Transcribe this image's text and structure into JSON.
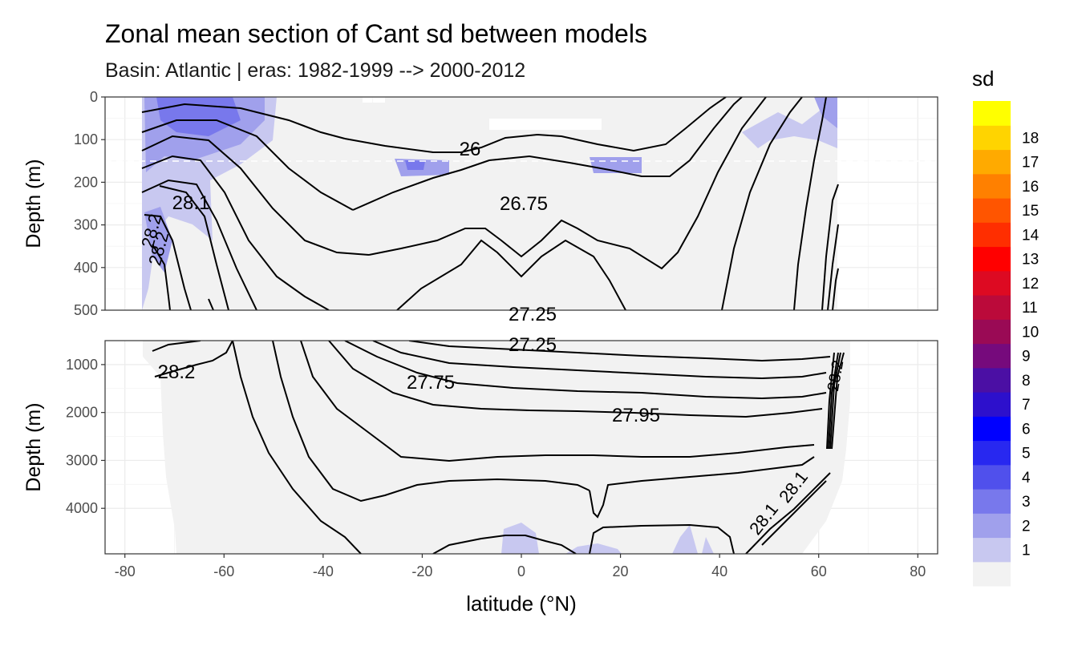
{
  "chart_data": {
    "type": "heatmap",
    "title": "Zonal mean section of Cant sd between models",
    "subtitle": "Basin: Atlantic | eras: 1982-1999 --> 2000-2012",
    "xlabel": "latitude (°N)",
    "ylabel_top": "Depth (m)",
    "ylabel_bottom": "Depth (m)",
    "x_ticks": [
      "-80",
      "-60",
      "-40",
      "-20",
      "0",
      "20",
      "40",
      "60",
      "80"
    ],
    "x_tick_values": [
      -80,
      -60,
      -40,
      -20,
      0,
      20,
      40,
      60,
      80
    ],
    "xlim": [
      -84,
      84
    ],
    "top_panel": {
      "ylim": [
        0,
        500
      ],
      "y_ticks": [
        "0",
        "100",
        "200",
        "300",
        "400",
        "500"
      ],
      "y_tick_values": [
        0,
        100,
        200,
        300,
        400,
        500
      ],
      "reference_line_depth": 150
    },
    "bottom_panel": {
      "ylim": [
        500,
        4950
      ],
      "y_ticks": [
        "1000",
        "2000",
        "3000",
        "4000"
      ],
      "y_tick_values": [
        1000,
        2000,
        3000,
        4000
      ]
    },
    "legend": {
      "title": "sd",
      "placement": "right",
      "levels": [
        "1",
        "2",
        "3",
        "4",
        "5",
        "6",
        "7",
        "8",
        "9",
        "10",
        "11",
        "12",
        "13",
        "14",
        "15",
        "16",
        "17",
        "18"
      ],
      "colors": [
        "#f2f2f2",
        "#c8c8f0",
        "#a0a0ec",
        "#7878ec",
        "#5050ec",
        "#2828f0",
        "#0000ff",
        "#2d10cc",
        "#4b0fa4",
        "#760a7c",
        "#9a0a55",
        "#bb0a3a",
        "#dd0a22",
        "#ff0000",
        "#ff2e00",
        "#ff5500",
        "#ff8000",
        "#ffaa00",
        "#ffd400",
        "#ffff00"
      ]
    },
    "contour_labels": {
      "top": [
        "26",
        "26.75",
        "28.1",
        "28.2",
        "28.2"
      ],
      "bottom": [
        "27.25",
        "27.25",
        "27.75",
        "27.95",
        "28.2",
        "28.1",
        "28.1",
        "28.2"
      ]
    }
  }
}
